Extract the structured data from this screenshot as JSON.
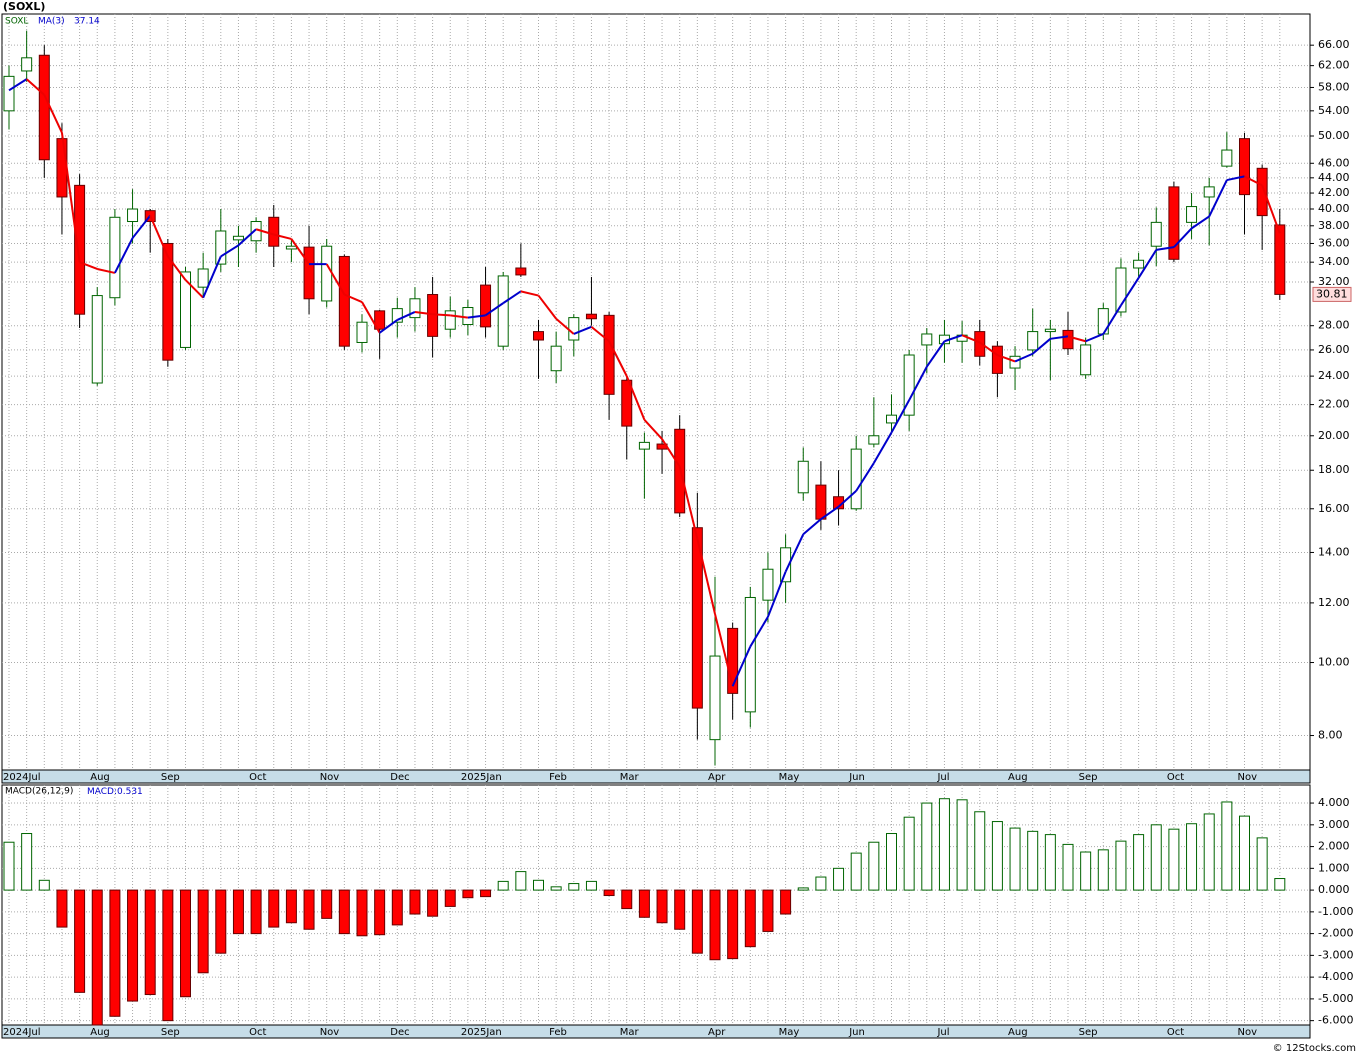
{
  "title": "(SOXL)",
  "footer": "© 12Stocks.com",
  "chart_data": [
    {
      "type": "candlestick",
      "name": "SOXL",
      "log_scale": true,
      "grid": true,
      "up_color": "#006400",
      "down_color": "#ff0000",
      "categories": [
        "2024Jul",
        null,
        null,
        null,
        null,
        "Aug",
        null,
        null,
        null,
        "Sep",
        null,
        null,
        null,
        null,
        "Oct",
        null,
        null,
        null,
        "Nov",
        null,
        null,
        null,
        "Dec",
        null,
        null,
        null,
        "2025Jan",
        null,
        null,
        null,
        null,
        "Feb",
        null,
        null,
        null,
        "Mar",
        null,
        null,
        null,
        null,
        "Apr",
        null,
        null,
        null,
        "May",
        null,
        null,
        null,
        "Jun",
        null,
        null,
        null,
        null,
        "Jul",
        null,
        null,
        null,
        "Aug",
        null,
        null,
        null,
        "Sep",
        null,
        null,
        null,
        null,
        "Oct",
        null,
        null,
        null,
        "Nov",
        null,
        null
      ],
      "open": [
        54,
        61,
        64,
        49.6,
        43,
        23.5,
        30.5,
        38.5,
        39.8,
        36,
        26.2,
        31.5,
        33.8,
        36.4,
        36.3,
        39,
        35.4,
        35.6,
        30.2,
        34.6,
        26.6,
        29.3,
        28.3,
        28.7,
        30.8,
        27.7,
        28.1,
        31.7,
        26.3,
        33.4,
        27.5,
        24.4,
        26.8,
        29,
        28.9,
        23.7,
        19.2,
        19.5,
        20.4,
        15.1,
        7.9,
        11.1,
        8.6,
        12.1,
        12.8,
        16.8,
        17.2,
        16.6,
        16,
        19.5,
        20.8,
        21.3,
        26.4,
        26.5,
        26.7,
        27.5,
        26.3,
        24.6,
        26,
        27.5,
        27.6,
        24.1,
        27.3,
        29.2,
        33.4,
        35.7,
        42.8,
        38.4,
        41.5,
        45.6,
        49.6,
        45.3,
        38.1
      ],
      "high": [
        62,
        69,
        66,
        52,
        44.5,
        31.5,
        40,
        42.5,
        40,
        36.5,
        33.5,
        35,
        40,
        38,
        39,
        40.5,
        36.5,
        38,
        36.5,
        34.8,
        29,
        29.4,
        30.5,
        31.5,
        32.5,
        30.6,
        30.3,
        33.5,
        33,
        36,
        28.5,
        27.5,
        29,
        32.5,
        29.2,
        24,
        20.2,
        20.3,
        21.3,
        16.8,
        13,
        11.3,
        12.6,
        14,
        14.8,
        19.3,
        18.5,
        18,
        20,
        22.5,
        22.7,
        26,
        27.8,
        28.5,
        28.4,
        28.5,
        26.7,
        26.3,
        29.5,
        28.5,
        29.2,
        27,
        30,
        34.4,
        35,
        40.2,
        43.5,
        42,
        44,
        50.6,
        50.5,
        45.8,
        40
      ],
      "low": [
        51,
        59,
        44,
        37,
        27.8,
        23.3,
        29.8,
        36,
        35,
        24.7,
        26,
        30.5,
        33,
        33.5,
        35,
        33.5,
        34,
        29,
        29.6,
        26,
        25.8,
        25.3,
        27,
        27.5,
        25.4,
        27,
        27.2,
        27,
        26,
        32.5,
        23.8,
        23.5,
        25.5,
        28,
        21,
        18.6,
        16.5,
        17.8,
        15.6,
        7.9,
        7.3,
        8.4,
        8.2,
        11.3,
        12,
        16.4,
        15,
        15.2,
        15.9,
        19.3,
        20.2,
        20.3,
        24.2,
        25,
        25,
        24.8,
        22.5,
        23,
        25.5,
        23.7,
        25.6,
        23.8,
        26.8,
        28.8,
        32.5,
        33.6,
        34,
        36.5,
        35.8,
        45.4,
        37,
        35.3,
        30.3
      ],
      "close": [
        60,
        63.5,
        46.5,
        41.5,
        29,
        30.7,
        39,
        40,
        38.5,
        25.2,
        33,
        33.3,
        37.4,
        36.8,
        38.5,
        35.7,
        35.7,
        30.4,
        35.7,
        26.3,
        28.3,
        27.7,
        29.5,
        30.4,
        27.1,
        29.3,
        29.6,
        27.9,
        32.6,
        32.7,
        26.8,
        26.3,
        28.7,
        28.6,
        22.7,
        20.6,
        19.6,
        19.2,
        15.8,
        8.7,
        10.2,
        9.1,
        12.2,
        13.3,
        14.2,
        18.5,
        15.5,
        16,
        19.2,
        20,
        21.3,
        25.6,
        27.3,
        27.2,
        27.2,
        25.5,
        24.2,
        25.5,
        27.5,
        27.7,
        26.1,
        26.4,
        29.5,
        33.4,
        34.2,
        38.4,
        34.3,
        40.3,
        42.8,
        47.9,
        41.8,
        39.2,
        30.81
      ],
      "overlay": {
        "name": "MA(3)",
        "up_color": "#0000cc",
        "down_color": "#ee0000",
        "values": [
          57.5,
          59.5,
          56.7,
          50.5,
          34,
          33.3,
          32.9,
          36.6,
          39.2,
          34.6,
          32.2,
          30.5,
          34.6,
          35.8,
          37.6,
          37,
          36.5,
          33.8,
          33.8,
          30.8,
          30.1,
          27.4,
          28.5,
          29.2,
          29,
          28.9,
          28.7,
          28.9,
          30,
          31.1,
          30.7,
          28.6,
          27.3,
          27.9,
          26.7,
          24,
          21,
          19.8,
          18.2,
          14.6,
          11.6,
          9.3,
          10.5,
          11.5,
          13.2,
          14.8,
          15.5,
          16.1,
          16.9,
          18.4,
          20.2,
          22.3,
          24.7,
          26.7,
          27.2,
          26.6,
          25.6,
          25.1,
          25.7,
          26.9,
          27.1,
          26.7,
          27.3,
          29.8,
          32.4,
          35.3,
          35.6,
          37.7,
          39.1,
          43.7,
          44.2,
          43,
          37.14
        ]
      },
      "ylim": [
        7.2,
        72.6
      ],
      "yticks": [
        {
          "value": 8,
          "label": "8.00"
        },
        {
          "value": 10,
          "label": "10.00"
        },
        {
          "value": 12,
          "label": "12.00"
        },
        {
          "value": 14,
          "label": "14.00"
        },
        {
          "value": 16,
          "label": "16.00"
        },
        {
          "value": 18,
          "label": "18.00"
        },
        {
          "value": 20,
          "label": "20.00"
        },
        {
          "value": 22,
          "label": "22.00"
        },
        {
          "value": 24,
          "label": "24.00"
        },
        {
          "value": 26,
          "label": "26.00"
        },
        {
          "value": 28,
          "label": "28.00"
        },
        {
          "value": 32,
          "label": "32.00"
        },
        {
          "value": 34,
          "label": "34.00"
        },
        {
          "value": 36,
          "label": "36.00"
        },
        {
          "value": 38,
          "label": "38.00"
        },
        {
          "value": 40,
          "label": "40.00"
        },
        {
          "value": 42,
          "label": "42.00"
        },
        {
          "value": 44,
          "label": "44.00"
        },
        {
          "value": 46,
          "label": "46.00"
        },
        {
          "value": 50,
          "label": "50.00"
        },
        {
          "value": 54,
          "label": "54.00"
        },
        {
          "value": 58,
          "label": "58.00"
        },
        {
          "value": 62,
          "label": "62.00"
        },
        {
          "value": 66,
          "label": "66.00"
        }
      ]
    },
    {
      "type": "histogram",
      "name": "MACD(26,12,9)",
      "legend_label": "MACD:",
      "grid": true,
      "up_color": "#006400",
      "down_color": "#ff0000",
      "categories": [
        "2024Jul",
        null,
        null,
        null,
        null,
        "Aug",
        null,
        null,
        null,
        "Sep",
        null,
        null,
        null,
        null,
        "Oct",
        null,
        null,
        null,
        "Nov",
        null,
        null,
        null,
        "Dec",
        null,
        null,
        null,
        "2025Jan",
        null,
        null,
        null,
        null,
        "Feb",
        null,
        null,
        null,
        "Mar",
        null,
        null,
        null,
        null,
        "Apr",
        null,
        null,
        null,
        "May",
        null,
        null,
        null,
        "Jun",
        null,
        null,
        null,
        null,
        "Jul",
        null,
        null,
        null,
        "Aug",
        null,
        null,
        null,
        "Sep",
        null,
        null,
        null,
        null,
        "Oct",
        null,
        null,
        null,
        "Nov",
        null,
        null
      ],
      "values": [
        2.2,
        2.6,
        0.45,
        -1.7,
        -4.7,
        -6.2,
        -5.8,
        -5.1,
        -4.8,
        -6.0,
        -4.9,
        -3.8,
        -2.9,
        -2.0,
        -2.0,
        -1.7,
        -1.5,
        -1.8,
        -1.3,
        -2.0,
        -2.1,
        -2.05,
        -1.6,
        -1.1,
        -1.2,
        -0.75,
        -0.35,
        -0.3,
        0.4,
        0.85,
        0.45,
        0.15,
        0.3,
        0.4,
        -0.25,
        -0.85,
        -1.25,
        -1.5,
        -1.8,
        -2.9,
        -3.2,
        -3.15,
        -2.6,
        -1.9,
        -1.1,
        0.1,
        0.6,
        1.0,
        1.7,
        2.2,
        2.6,
        3.35,
        4.0,
        4.2,
        4.15,
        3.6,
        3.15,
        2.85,
        2.7,
        2.55,
        2.1,
        1.75,
        1.85,
        2.25,
        2.55,
        3.0,
        2.8,
        3.05,
        3.5,
        4.05,
        3.4,
        2.4,
        0.531
      ],
      "ylim": [
        -6.2,
        4.83
      ],
      "yticks": [
        {
          "value": -6,
          "label": "-6.000"
        },
        {
          "value": -5,
          "label": "-5.000"
        },
        {
          "value": -4,
          "label": "-4.000"
        },
        {
          "value": -3,
          "label": "-3.000"
        },
        {
          "value": -2,
          "label": "-2.000"
        },
        {
          "value": -1,
          "label": "-1.000"
        },
        {
          "value": 0,
          "label": "0.000"
        },
        {
          "value": 1,
          "label": "1.000"
        },
        {
          "value": 2,
          "label": "2.000"
        },
        {
          "value": 3,
          "label": "3.000"
        },
        {
          "value": 4,
          "label": "4.000"
        }
      ]
    }
  ]
}
